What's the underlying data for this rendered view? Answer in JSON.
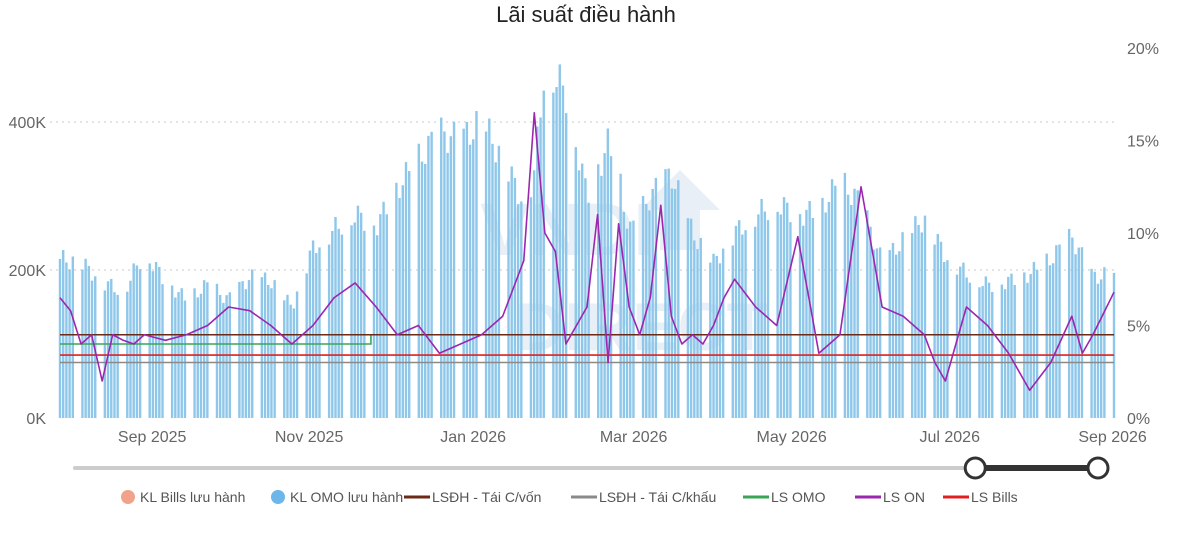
{
  "chart_data": {
    "type": "bar",
    "title": "Lãi suất điều hành",
    "y_left": {
      "ticks": [
        "0K",
        "200K",
        "400K"
      ],
      "values": [
        0,
        200000,
        400000
      ],
      "range": [
        0,
        500000
      ]
    },
    "y_right": {
      "ticks": [
        "0%",
        "5%",
        "10%",
        "15%",
        "20%"
      ],
      "values": [
        0,
        5,
        10,
        15,
        20
      ],
      "range": [
        0,
        20
      ]
    },
    "x_ticks": [
      "Sep 2025",
      "Nov 2025",
      "Jan 2026",
      "Mar 2026",
      "May 2026",
      "Jul 2026",
      "Sep 2026"
    ],
    "x_tick_positions": [
      0.0495,
      0.1984,
      0.354,
      0.5063,
      0.6562,
      0.8062,
      0.9607
    ],
    "grid": "dotted horizontal",
    "legend_position": "bottom",
    "legend": [
      {
        "label": "KL Bills lưu hành",
        "color": "#f0a38a",
        "marker": "dot"
      },
      {
        "label": "KL OMO lưu hành",
        "color": "#6cb6ea",
        "marker": "dot"
      },
      {
        "label": "LSĐH - Tái C/vốn",
        "color": "#6b2a16",
        "marker": "line"
      },
      {
        "label": "LSĐH - Tái C/khấu",
        "color": "#8a8a8a",
        "marker": "line"
      },
      {
        "label": "LS OMO",
        "color": "#3aa655",
        "marker": "line"
      },
      {
        "label": "LS ON",
        "color": "#9b27ae",
        "marker": "line"
      },
      {
        "label": "LS Bills",
        "color": "#e02020",
        "marker": "line"
      }
    ],
    "series": [
      {
        "name": "KL OMO lưu hành",
        "axis": "left",
        "kind": "bar",
        "color": "#8ec7ea",
        "x": [
          0.0,
          0.02,
          0.04,
          0.06,
          0.08,
          0.1,
          0.12,
          0.14,
          0.16,
          0.18,
          0.2,
          0.22,
          0.24,
          0.26,
          0.28,
          0.3,
          0.32,
          0.34,
          0.36,
          0.38,
          0.4,
          0.42,
          0.44,
          0.45,
          0.46,
          0.48,
          0.5,
          0.52,
          0.53,
          0.54,
          0.56,
          0.58,
          0.6,
          0.62,
          0.64,
          0.66,
          0.68,
          0.7,
          0.72,
          0.74,
          0.76,
          0.78,
          0.8,
          0.82,
          0.84,
          0.86,
          0.88,
          0.9,
          0.92,
          0.94,
          0.96,
          0.98,
          1.0
        ],
        "values": [
          215000,
          210000,
          185000,
          170000,
          225000,
          185000,
          160000,
          180000,
          160000,
          190000,
          185000,
          150000,
          230000,
          255000,
          275000,
          260000,
          310000,
          350000,
          385000,
          375000,
          400000,
          350000,
          290000,
          330000,
          480000,
          440000,
          300000,
          370000,
          330000,
          250000,
          300000,
          330000,
          250000,
          210000,
          250000,
          275000,
          290000,
          275000,
          280000,
          320000,
          290000,
          210000,
          240000,
          270000,
          220000,
          195000,
          180000,
          185000,
          195000,
          215000,
          245000,
          190000,
          195000
        ]
      },
      {
        "name": "LS ON",
        "axis": "right",
        "kind": "line",
        "color": "#9b27ae",
        "x": [
          0.0,
          0.01,
          0.02,
          0.03,
          0.04,
          0.05,
          0.06,
          0.07,
          0.08,
          0.1,
          0.12,
          0.14,
          0.16,
          0.18,
          0.2,
          0.22,
          0.24,
          0.26,
          0.28,
          0.3,
          0.32,
          0.34,
          0.36,
          0.38,
          0.4,
          0.42,
          0.44,
          0.45,
          0.46,
          0.47,
          0.48,
          0.5,
          0.51,
          0.52,
          0.53,
          0.54,
          0.55,
          0.56,
          0.57,
          0.58,
          0.59,
          0.6,
          0.61,
          0.62,
          0.63,
          0.64,
          0.66,
          0.68,
          0.7,
          0.72,
          0.74,
          0.76,
          0.78,
          0.8,
          0.82,
          0.83,
          0.84,
          0.86,
          0.88,
          0.9,
          0.92,
          0.94,
          0.96,
          0.97,
          0.98,
          1.0
        ],
        "values": [
          6.5,
          5.8,
          4.0,
          4.5,
          2.0,
          4.5,
          4.2,
          4.0,
          4.5,
          4.2,
          4.5,
          5.0,
          6.0,
          5.8,
          5.0,
          4.0,
          5.0,
          6.5,
          7.3,
          6.0,
          4.5,
          5.0,
          3.5,
          4.0,
          4.5,
          5.5,
          8.5,
          16.5,
          10.0,
          9.0,
          4.0,
          6.0,
          11.0,
          3.0,
          10.5,
          6.0,
          4.5,
          6.5,
          11.5,
          5.5,
          4.0,
          4.5,
          4.0,
          5.0,
          6.5,
          7.5,
          6.0,
          5.0,
          9.8,
          3.5,
          4.5,
          12.5,
          6.0,
          5.5,
          4.5,
          3.0,
          2.0,
          6.0,
          5.0,
          3.5,
          1.5,
          3.0,
          5.5,
          3.5,
          4.5,
          6.8
        ]
      },
      {
        "name": "LS OMO",
        "axis": "right",
        "kind": "step",
        "color": "#3aa655",
        "x": [
          0.0,
          0.295,
          0.295,
          1.0
        ],
        "values": [
          4.0,
          4.0,
          4.5,
          4.5
        ]
      },
      {
        "name": "LSĐH - Tái C/vốn",
        "axis": "right",
        "kind": "step",
        "color": "#6b2a16",
        "x": [
          0.0,
          1.0
        ],
        "values": [
          4.5,
          4.5
        ]
      },
      {
        "name": "LSĐH - Tái C/khấu",
        "axis": "right",
        "kind": "step",
        "color": "#8a8a8a",
        "x": [
          0.0,
          1.0
        ],
        "values": [
          3.0,
          3.0
        ]
      },
      {
        "name": "LS Bills",
        "axis": "right",
        "kind": "step",
        "color": "#e02020",
        "x": [
          0.0,
          1.0
        ],
        "values": [
          3.4,
          3.4
        ]
      }
    ],
    "slider": {
      "start": 0.0,
      "selected_start": 0.88,
      "selected_end": 1.0
    }
  }
}
